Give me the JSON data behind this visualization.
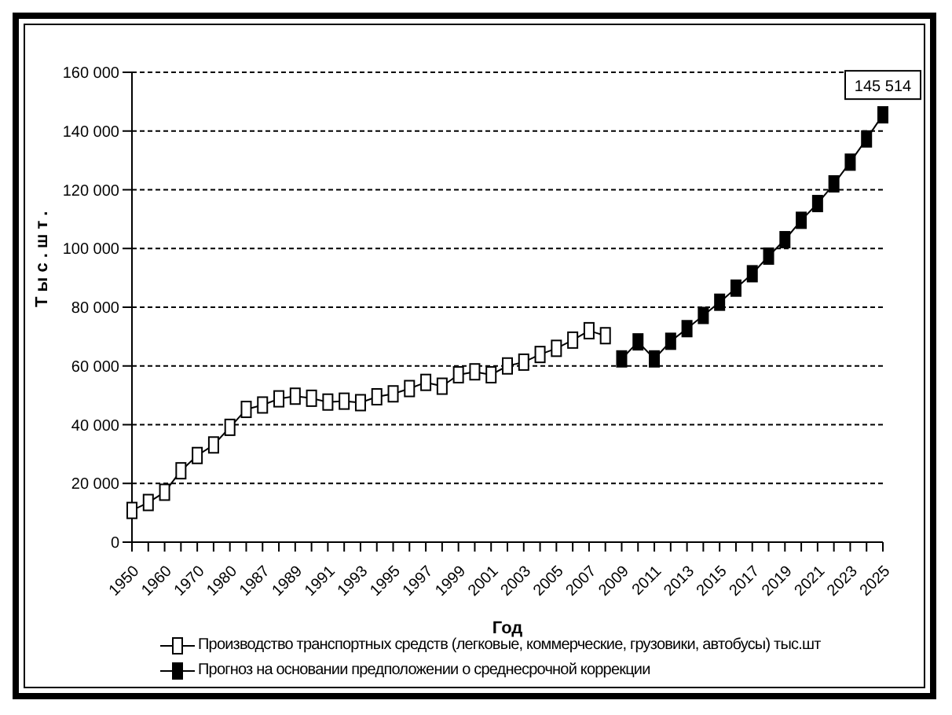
{
  "chart_data": {
    "type": "line",
    "xlabel": "Год",
    "ylabel": "Т ы с . ш т .",
    "categories": [
      "1950",
      null,
      "1960",
      null,
      "1970",
      null,
      "1980",
      null,
      "1987",
      null,
      "1989",
      null,
      "1991",
      null,
      "1993",
      null,
      "1995",
      null,
      "1997",
      null,
      "1999",
      null,
      "2001",
      null,
      "2003",
      null,
      "2005",
      null,
      "2007",
      null,
      "2009",
      null,
      "2011",
      null,
      "2013",
      null,
      "2015",
      null,
      "2017",
      null,
      "2019",
      null,
      "2021",
      null,
      "2023",
      null,
      "2025"
    ],
    "series": [
      {
        "name": "Производство  транспортных средств (легковые, коммерческие, грузовики, автобусы) тыс.шт",
        "color": "#ffffff",
        "marker": "square",
        "values": [
          10800,
          13500,
          17000,
          24300,
          29500,
          33100,
          39100,
          45200,
          46700,
          48800,
          49700,
          49000,
          47700,
          48000,
          47500,
          49500,
          50500,
          52300,
          54400,
          53100,
          57000,
          58000,
          57000,
          60000,
          61300,
          63900,
          66000,
          68800,
          72000,
          70300,
          null,
          null,
          null,
          null,
          null,
          null,
          null,
          null,
          null,
          null,
          null,
          null,
          null,
          null,
          null,
          null,
          null
        ]
      },
      {
        "name": "Прогноз на основании предположении  о среднесрочной коррекции",
        "color": "#000000",
        "marker": "square",
        "values": [
          null,
          null,
          null,
          null,
          null,
          null,
          null,
          null,
          null,
          null,
          null,
          null,
          null,
          null,
          null,
          null,
          null,
          null,
          null,
          null,
          null,
          null,
          null,
          null,
          null,
          null,
          null,
          null,
          null,
          null,
          62400,
          68200,
          62400,
          68400,
          72700,
          77200,
          81700,
          86500,
          91400,
          97400,
          103000,
          109600,
          115300,
          122000,
          129400,
          137300,
          145514
        ],
        "value_labels": [
          null,
          null,
          null,
          null,
          null,
          null,
          null,
          null,
          null,
          null,
          null,
          null,
          null,
          null,
          null,
          null,
          null,
          null,
          null,
          null,
          null,
          null,
          null,
          null,
          null,
          null,
          null,
          null,
          null,
          null,
          null,
          null,
          null,
          null,
          null,
          null,
          null,
          null,
          null,
          null,
          null,
          null,
          null,
          null,
          null,
          null,
          "145 514"
        ]
      }
    ],
    "ylim": [
      0,
      160000
    ],
    "yticks": [
      {
        "value": 0,
        "label": "0"
      },
      {
        "value": 20000,
        "label": "20 000"
      },
      {
        "value": 40000,
        "label": "40 000"
      },
      {
        "value": 60000,
        "label": "60 000"
      },
      {
        "value": 80000,
        "label": "80 000"
      },
      {
        "value": 100000,
        "label": "100 000"
      },
      {
        "value": 120000,
        "label": "120 000"
      },
      {
        "value": 140000,
        "label": "140 000"
      },
      {
        "value": 160000,
        "label": "160 000"
      }
    ],
    "grid": "y",
    "legend": "bottom",
    "line_style": "solid"
  }
}
